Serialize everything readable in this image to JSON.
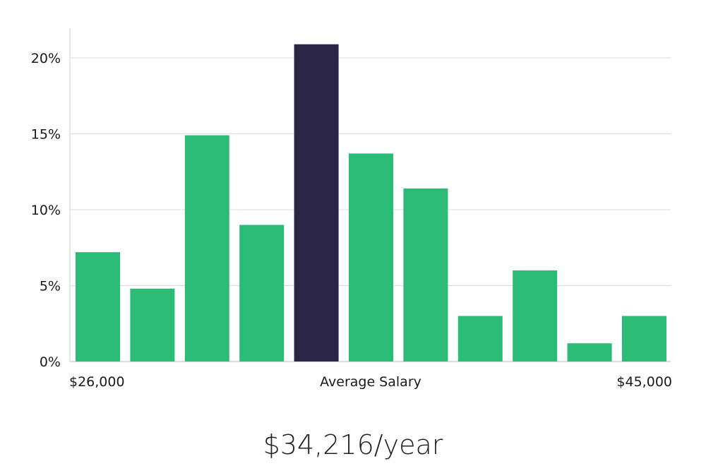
{
  "chart_data": {
    "type": "bar",
    "x_labels": {
      "left": "$26,000",
      "center": "Average Salary",
      "right": "$45,000"
    },
    "values": [
      7.2,
      4.8,
      14.9,
      9.0,
      20.9,
      13.7,
      11.4,
      3.0,
      6.0,
      1.2,
      3.0
    ],
    "highlight_index": 4,
    "y_ticks": [
      "0%",
      "5%",
      "10%",
      "15%",
      "20%"
    ],
    "ylim": [
      0,
      22
    ],
    "grid": true,
    "colors": {
      "bar": "#2bbd78",
      "highlight": "#2a2545",
      "grid": "#dddddd"
    }
  },
  "summary": {
    "salary": "$34,216/year"
  }
}
